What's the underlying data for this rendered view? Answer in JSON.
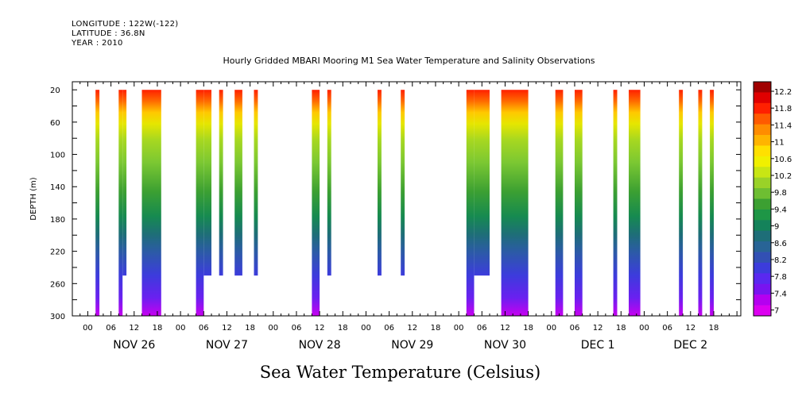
{
  "header": {
    "longitude_line": "LONGITUDE : 122W(-122)",
    "latitude_line": "LATITUDE : 36.8N",
    "year_line": "YEAR : 2010"
  },
  "chart_data": {
    "type": "heatmap",
    "title": "Hourly Gridded MBARI Mooring M1 Sea Water Temperature and Salinity Observations",
    "xlabel": "Sea Water Temperature (Celsius)",
    "ylabel": "DEPTH (m)",
    "ylim": [
      300,
      10
    ],
    "y_ticks": [
      20,
      60,
      100,
      140,
      180,
      220,
      260,
      300
    ],
    "x_hour_ticks": [
      "00",
      "06",
      "12",
      "18",
      "00",
      "06",
      "12",
      "18",
      "00",
      "06",
      "12",
      "18",
      "00",
      "06",
      "12",
      "18",
      "00",
      "06",
      "12",
      "18",
      "00",
      "06",
      "12",
      "18",
      "00",
      "06",
      "12",
      "18"
    ],
    "x_day_labels": [
      "NOV 26",
      "NOV 27",
      "NOV 28",
      "NOV 29",
      "NOV 30",
      "DEC  1",
      "DEC  2"
    ],
    "colorbar_labels": [
      "12.2",
      "11.8",
      "11.4",
      "11",
      "10.6",
      "10.2",
      "9.8",
      "9.4",
      "9",
      "8.6",
      "8.2",
      "7.8",
      "7.4",
      "7"
    ],
    "colorbar_colors": [
      "#a00000",
      "#e00000",
      "#ff2000",
      "#ff5a00",
      "#ff8c00",
      "#ffb400",
      "#ffe000",
      "#f0f000",
      "#c8e614",
      "#9ad228",
      "#6ebe32",
      "#3ca032",
      "#1e9646",
      "#14825a",
      "#1e6e78",
      "#286496",
      "#3250b4",
      "#3c3cdc",
      "#5a28f0",
      "#7814f0",
      "#b400f0",
      "#dc00f0"
    ],
    "segments": [
      {
        "start_hour": 2,
        "end_hour": 3,
        "max_depth": 300
      },
      {
        "start_hour": 8,
        "end_hour": 9,
        "max_depth": 300
      },
      {
        "start_hour": 9,
        "end_hour": 10,
        "max_depth": 250
      },
      {
        "start_hour": 14,
        "end_hour": 19,
        "max_depth": 300
      },
      {
        "start_hour": 28,
        "end_hour": 30,
        "max_depth": 300
      },
      {
        "start_hour": 30,
        "end_hour": 32,
        "max_depth": 250
      },
      {
        "start_hour": 34,
        "end_hour": 35,
        "max_depth": 250
      },
      {
        "start_hour": 38,
        "end_hour": 40,
        "max_depth": 250
      },
      {
        "start_hour": 43,
        "end_hour": 44,
        "max_depth": 250
      },
      {
        "start_hour": 58,
        "end_hour": 60,
        "max_depth": 300
      },
      {
        "start_hour": 62,
        "end_hour": 63,
        "max_depth": 250
      },
      {
        "start_hour": 75,
        "end_hour": 76,
        "max_depth": 250
      },
      {
        "start_hour": 81,
        "end_hour": 82,
        "max_depth": 250
      },
      {
        "start_hour": 98,
        "end_hour": 100,
        "max_depth": 300
      },
      {
        "start_hour": 100,
        "end_hour": 104,
        "max_depth": 250
      },
      {
        "start_hour": 107,
        "end_hour": 114,
        "max_depth": 300
      },
      {
        "start_hour": 121,
        "end_hour": 123,
        "max_depth": 300
      },
      {
        "start_hour": 126,
        "end_hour": 128,
        "max_depth": 300
      },
      {
        "start_hour": 136,
        "end_hour": 137,
        "max_depth": 300
      },
      {
        "start_hour": 140,
        "end_hour": 143,
        "max_depth": 300
      },
      {
        "start_hour": 153,
        "end_hour": 154,
        "max_depth": 300
      },
      {
        "start_hour": 158,
        "end_hour": 159,
        "max_depth": 300
      },
      {
        "start_hour": 161,
        "end_hour": 162,
        "max_depth": 300
      }
    ]
  }
}
